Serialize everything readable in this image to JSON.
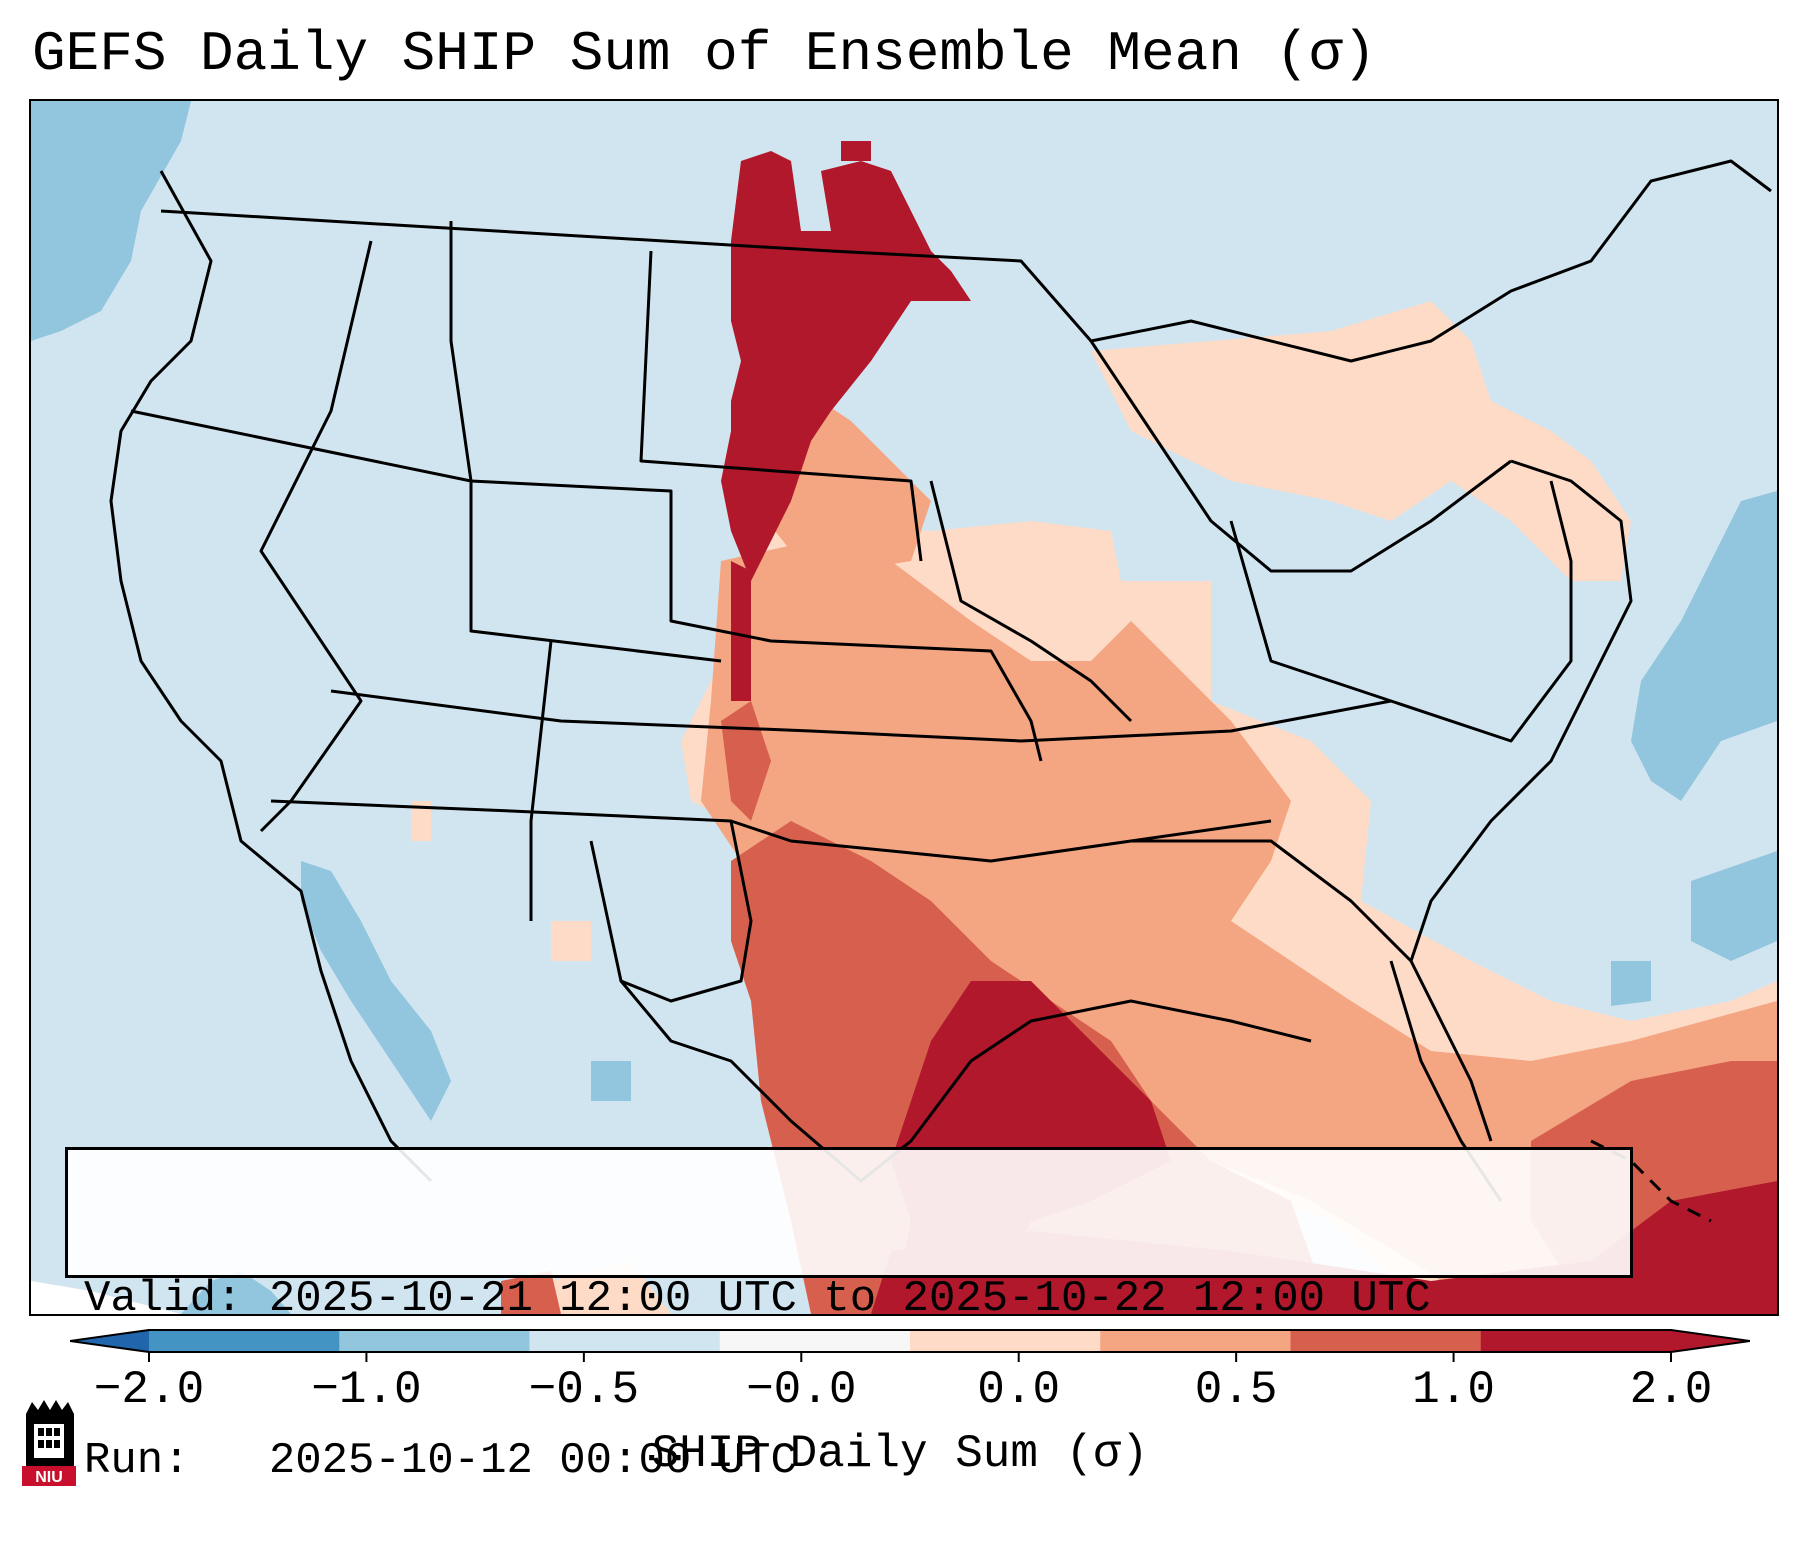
{
  "title": "GEFS Daily SHIP Sum of Ensemble Mean (σ)",
  "info": {
    "valid_line": "Valid: 2025-10-21 12:00 UTC to 2025-10-22 12:00 UTC",
    "run_line": "Run:   2025-10-12 00:00 UTC"
  },
  "colorbar": {
    "label": "SHIP Daily Sum (σ)",
    "ticks": [
      "−2.0",
      "−1.0",
      "−0.5",
      "−0.0",
      "0.0",
      "0.5",
      "1.0",
      "2.0"
    ],
    "colors": [
      "#4393c3",
      "#92c5de",
      "#d1e5f0",
      "#f7f7f7",
      "#fddbc7",
      "#f4a582",
      "#d6604d",
      "#b2182b"
    ],
    "min_extend_color": "#2166ac",
    "max_extend_color": "#b2182b"
  },
  "logo": {
    "text": "NIU"
  }
}
